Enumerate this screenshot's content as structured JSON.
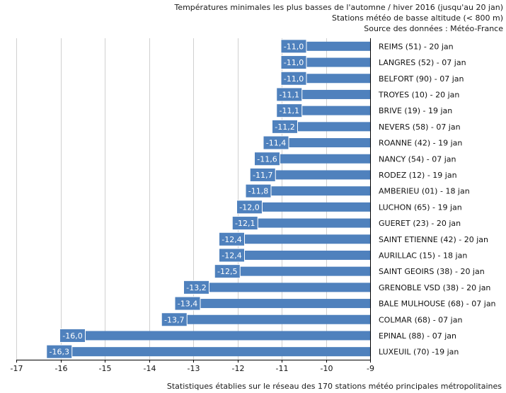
{
  "chart_data": {
    "type": "bar",
    "orientation": "horizontal",
    "title": "Températures minimales les plus basses de l'automne / hiver 2016 (jusqu'au 20 jan)",
    "subtitle": "Stations météo de basse altitude (< 800 m)",
    "source": "Source des données : Météo-France",
    "footer": "Statistiques établies sur le réseau des 170 stations météo principales métropolitaines",
    "xlim": [
      -17,
      -9
    ],
    "xticks": [
      -17,
      -16,
      -15,
      -14,
      -13,
      -12,
      -11,
      -10,
      -9
    ],
    "grid": true,
    "bar_color": "#4f81bd",
    "categories": [
      "REIMS (51) - 20 jan",
      "LANGRES (52) - 07 jan",
      "BELFORT (90) - 07 jan",
      "TROYES (10) - 20 jan",
      "BRIVE (19) - 19 jan",
      "NEVERS (58) - 07 jan",
      "ROANNE (42) - 19 jan",
      "NANCY (54) - 07 jan",
      "RODEZ (12) - 19 jan",
      "AMBERIEU (01) - 18 jan",
      "LUCHON (65) - 19 jan",
      "GUERET (23) - 20 jan",
      "SAINT ETIENNE (42) - 20 jan",
      "AURILLAC (15) - 18 jan",
      "SAINT GEOIRS (38) - 20 jan",
      "GRENOBLE VSD (38) - 20 jan",
      "BALE MULHOUSE (68) - 07 jan",
      "COLMAR (68) - 07 jan",
      "EPINAL (88) - 07 jan",
      "LUXEUIL (70) -19 jan"
    ],
    "values": [
      -11.0,
      -11.0,
      -11.0,
      -11.1,
      -11.1,
      -11.2,
      -11.4,
      -11.6,
      -11.7,
      -11.8,
      -12.0,
      -12.1,
      -12.4,
      -12.4,
      -12.5,
      -13.2,
      -13.4,
      -13.7,
      -16.0,
      -16.3
    ],
    "value_labels": [
      "-11,0",
      "-11,0",
      "-11,0",
      "-11,1",
      "-11,1",
      "-11,2",
      "-11,4",
      "-11,6",
      "-11,7",
      "-11,8",
      "-12,0",
      "-12,1",
      "-12,4",
      "-12,4",
      "-12,5",
      "-13,2",
      "-13,4",
      "-13,7",
      "-16,0",
      "-16,3"
    ]
  }
}
